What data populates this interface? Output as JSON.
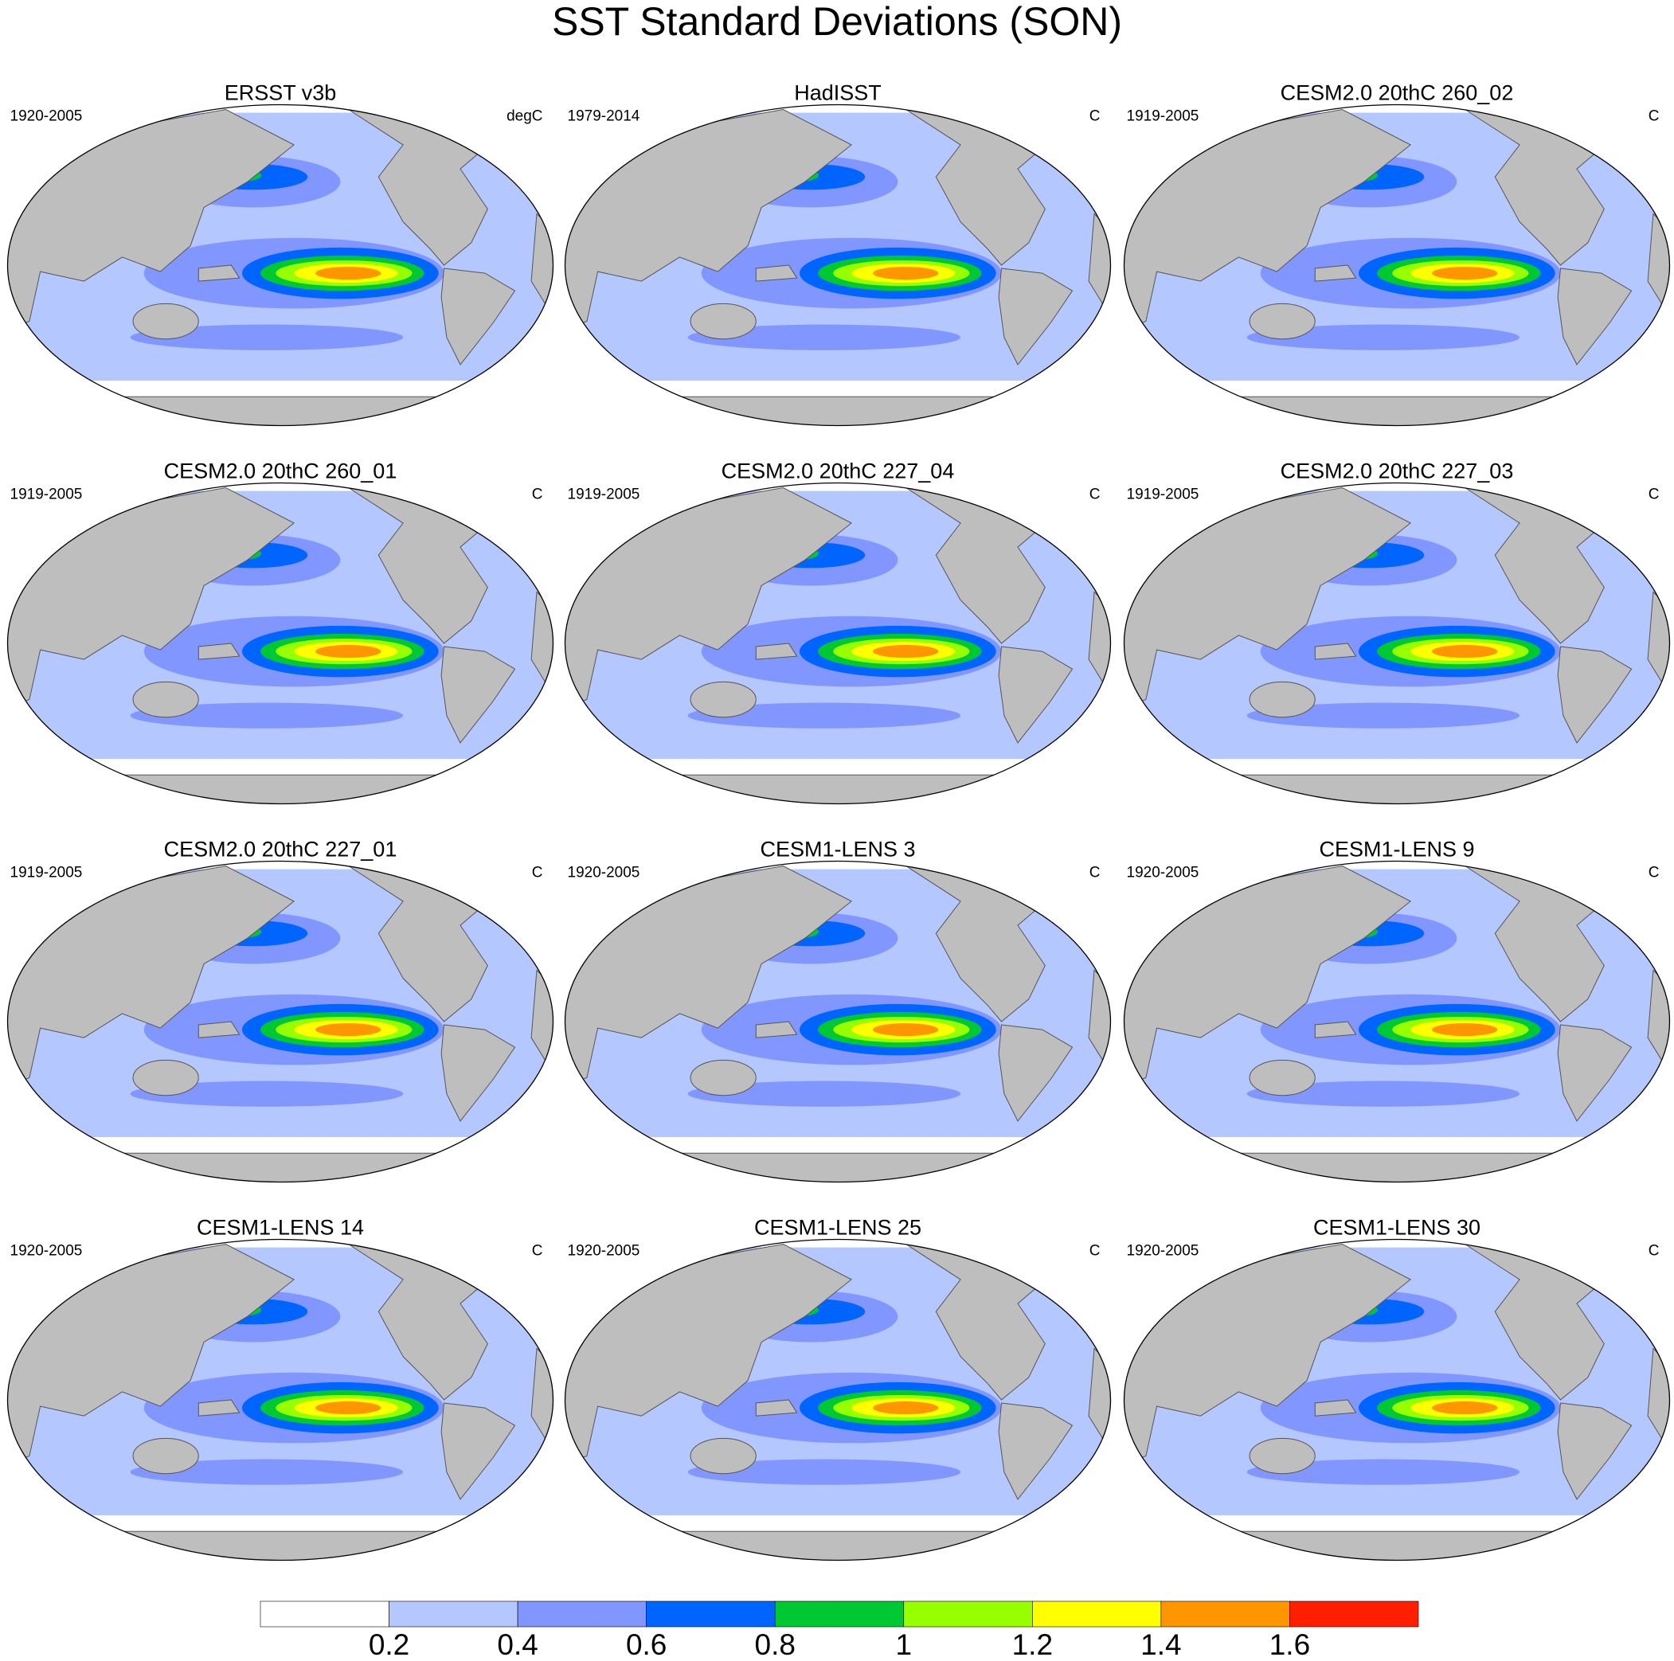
{
  "title": "SST Standard Deviations (SON)",
  "panels": [
    {
      "title": "ERSST v3b",
      "period": "1920-2005",
      "units": "degC"
    },
    {
      "title": "HadISST",
      "period": "1979-2014",
      "units": "C"
    },
    {
      "title": "CESM2.0 20thC 260_02",
      "period": "1919-2005",
      "units": "C"
    },
    {
      "title": "CESM2.0 20thC 260_01",
      "period": "1919-2005",
      "units": "C"
    },
    {
      "title": "CESM2.0 20thC 227_04",
      "period": "1919-2005",
      "units": "C"
    },
    {
      "title": "CESM2.0 20thC 227_03",
      "period": "1919-2005",
      "units": "C"
    },
    {
      "title": "CESM2.0 20thC 227_01",
      "period": "1919-2005",
      "units": "C"
    },
    {
      "title": "CESM1-LENS 3",
      "period": "1920-2005",
      "units": "C"
    },
    {
      "title": "CESM1-LENS 9",
      "period": "1920-2005",
      "units": "C"
    },
    {
      "title": "CESM1-LENS 14",
      "period": "1920-2005",
      "units": "C"
    },
    {
      "title": "CESM1-LENS 25",
      "period": "1920-2005",
      "units": "C"
    },
    {
      "title": "CESM1-LENS 30",
      "period": "1920-2005",
      "units": "C"
    }
  ],
  "colorbar": {
    "colors": [
      "#ffffff",
      "#b4c8ff",
      "#8296ff",
      "#0064ff",
      "#00c832",
      "#96ff00",
      "#ffff00",
      "#ff9600",
      "#ff1e00"
    ],
    "levels": [
      0.2,
      0.4,
      0.6,
      0.8,
      1,
      1.2,
      1.4,
      1.6
    ]
  }
}
